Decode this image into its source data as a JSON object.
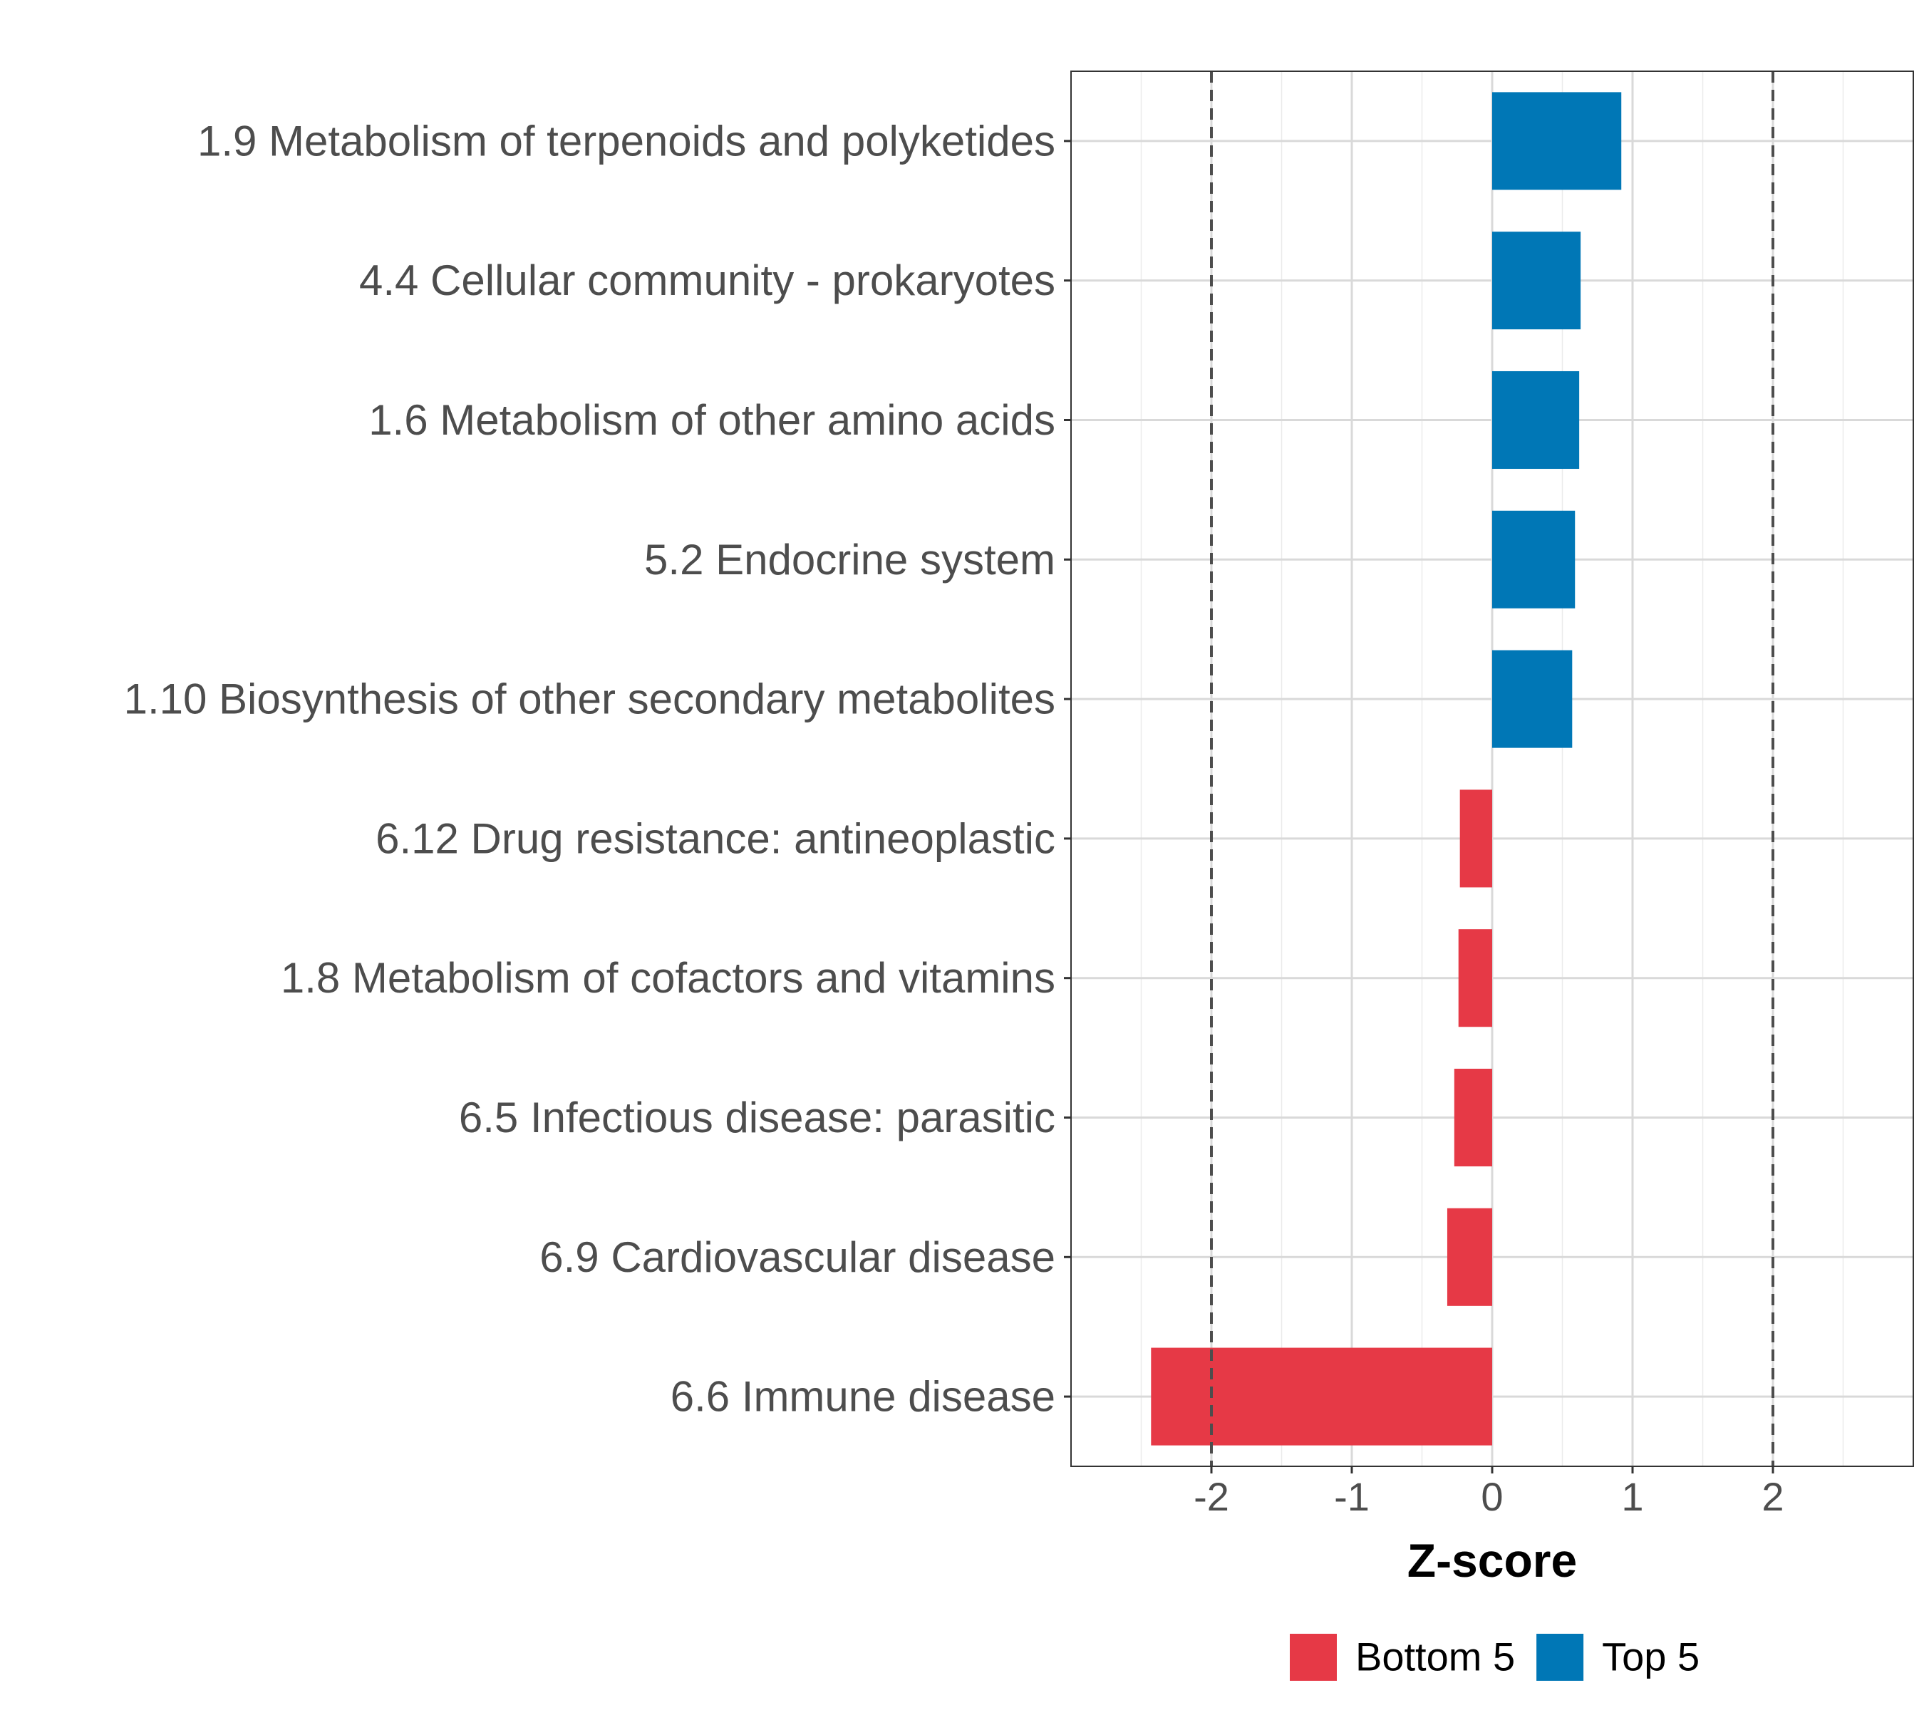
{
  "chart_data": {
    "type": "bar",
    "orientation": "horizontal",
    "title": "",
    "xlabel": "Z-score",
    "ylabel": "",
    "xlim": [
      -3.0,
      3.0
    ],
    "xticks": [
      -2,
      -1,
      0,
      1,
      2
    ],
    "xtick_labels": [
      "-2",
      "-1",
      "0",
      "1",
      "2"
    ],
    "reference_lines": [
      -2,
      2
    ],
    "grid": true,
    "categories": [
      "1.9 Metabolism of terpenoids and polyketides",
      "4.4 Cellular community - prokaryotes",
      "1.6 Metabolism of other amino acids",
      "5.2 Endocrine system",
      "1.10 Biosynthesis of other secondary metabolites",
      "6.12 Drug resistance: antineoplastic",
      "1.8 Metabolism of cofactors and vitamins",
      "6.5 Infectious disease: parasitic",
      "6.9 Cardiovascular disease",
      "6.6 Immune disease"
    ],
    "values": [
      0.92,
      0.63,
      0.62,
      0.59,
      0.57,
      -0.23,
      -0.24,
      -0.27,
      -0.32,
      -2.43
    ],
    "groups": [
      "Top 5",
      "Top 5",
      "Top 5",
      "Top 5",
      "Top 5",
      "Bottom 5",
      "Bottom 5",
      "Bottom 5",
      "Bottom 5",
      "Bottom 5"
    ],
    "legend": {
      "position": "bottom",
      "entries": [
        {
          "name": "Bottom 5",
          "color": "#E63946"
        },
        {
          "name": "Top 5",
          "color": "#0077B6"
        }
      ]
    }
  }
}
